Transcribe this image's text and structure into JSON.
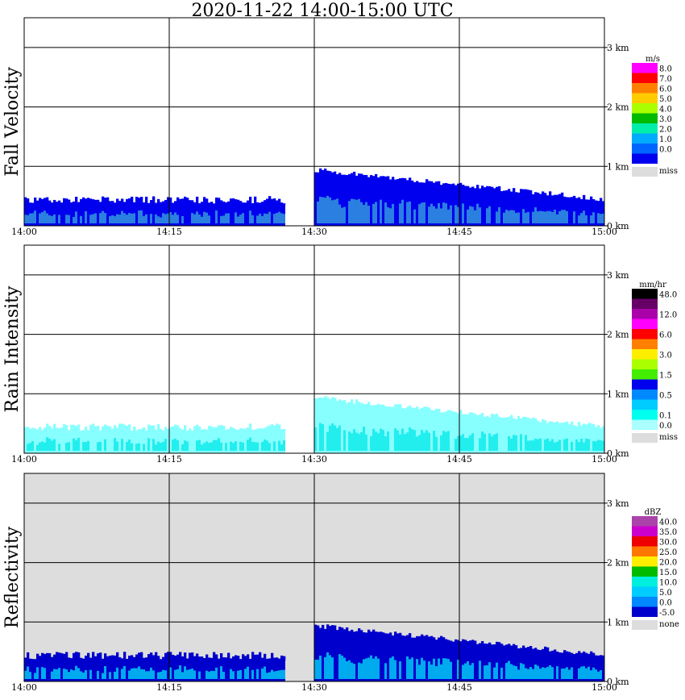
{
  "title": "2020-11-22   14:00-15:00 UTC",
  "chart_data": [
    {
      "type": "heatmap",
      "panel_label": "Fall Velocity",
      "x_ticks": [
        "14:00",
        "14:15",
        "14:30",
        "14:45",
        "15:00"
      ],
      "y_ticks": [
        "0 km",
        "1 km",
        "2 km",
        "3 km"
      ],
      "xlim": [
        "14:00",
        "15:00"
      ],
      "ylim_km": [
        0,
        3.5
      ],
      "background": "#ffffff",
      "grid": true,
      "legend_position": "right",
      "legend_unit": "m/s",
      "legend": [
        {
          "label": "8.0",
          "color": "#ff00ff"
        },
        {
          "label": "7.0",
          "color": "#ff0000"
        },
        {
          "label": "6.0",
          "color": "#ff8000"
        },
        {
          "label": "5.0",
          "color": "#ffcc00"
        },
        {
          "label": "4.0",
          "color": "#aaff00"
        },
        {
          "label": "3.0",
          "color": "#00bb00"
        },
        {
          "label": "2.0",
          "color": "#00eeaa"
        },
        {
          "label": "1.0",
          "color": "#00aaff"
        },
        {
          "label": "0.0",
          "color": "#0066ff"
        },
        {
          "label": "",
          "color": "#0000ee"
        }
      ],
      "missing_label": "miss",
      "main_color": "#0000ee",
      "core_color": "#2a7fe0",
      "echoes": [
        {
          "start_min": 0,
          "end_min": 27,
          "top_km": 0.5
        },
        {
          "start_min": 30,
          "end_min": 60,
          "top_km": 0.9
        }
      ]
    },
    {
      "type": "heatmap",
      "panel_label": "Rain Intensity",
      "x_ticks": [
        "14:00",
        "14:15",
        "14:30",
        "14:45",
        "15:00"
      ],
      "y_ticks": [
        "0 km",
        "1 km",
        "2 km",
        "3 km"
      ],
      "xlim": [
        "14:00",
        "15:00"
      ],
      "ylim_km": [
        0,
        3.5
      ],
      "background": "#ffffff",
      "grid": true,
      "legend_position": "right",
      "legend_unit": "mm/hr",
      "legend": [
        {
          "label": "48.0",
          "color": "#000000"
        },
        {
          "label": "",
          "color": "#660066"
        },
        {
          "label": "12.0",
          "color": "#aa00aa"
        },
        {
          "label": "",
          "color": "#ff00ff"
        },
        {
          "label": "6.0",
          "color": "#ff0000"
        },
        {
          "label": "",
          "color": "#ff8000"
        },
        {
          "label": "3.0",
          "color": "#ffee00"
        },
        {
          "label": "",
          "color": "#aaff00"
        },
        {
          "label": "1.5",
          "color": "#44ee00"
        },
        {
          "label": "",
          "color": "#0000ee"
        },
        {
          "label": "0.5",
          "color": "#0088ff"
        },
        {
          "label": "",
          "color": "#00ccff"
        },
        {
          "label": "0.1",
          "color": "#00ffee"
        },
        {
          "label": "0.0",
          "color": "#aaffff"
        }
      ],
      "missing_label": "miss",
      "main_color": "#88ffff",
      "core_color": "#22eeee",
      "echoes": [
        {
          "start_min": 0,
          "end_min": 27,
          "top_km": 0.5
        },
        {
          "start_min": 30,
          "end_min": 60,
          "top_km": 0.9
        }
      ]
    },
    {
      "type": "heatmap",
      "panel_label": "Reflectivity",
      "x_ticks": [
        "14:00",
        "14:15",
        "14:30",
        "14:45",
        "15:00"
      ],
      "y_ticks": [
        "0 km",
        "1 km",
        "2 km",
        "3 km"
      ],
      "xlim": [
        "14:00",
        "15:00"
      ],
      "ylim_km": [
        0,
        3.5
      ],
      "background": "#dddddd",
      "grid": true,
      "legend_position": "right",
      "legend_unit": "dBZ",
      "legend": [
        {
          "label": "40.0",
          "color": "#aa44aa"
        },
        {
          "label": "35.0",
          "color": "#cc00cc"
        },
        {
          "label": "30.0",
          "color": "#ee0000"
        },
        {
          "label": "25.0",
          "color": "#ff7700"
        },
        {
          "label": "20.0",
          "color": "#ffee00"
        },
        {
          "label": "15.0",
          "color": "#00bb00"
        },
        {
          "label": "10.0",
          "color": "#00eedd"
        },
        {
          "label": "5.0",
          "color": "#00ccff"
        },
        {
          "label": "0.0",
          "color": "#0088ff"
        },
        {
          "label": "-5.0",
          "color": "#0000cc"
        }
      ],
      "missing_label": "none",
      "main_color": "#0000cc",
      "core_color": "#00aaee",
      "echoes": [
        {
          "start_min": 0,
          "end_min": 27,
          "top_km": 0.5
        },
        {
          "start_min": 30,
          "end_min": 60,
          "top_km": 0.9
        }
      ]
    }
  ]
}
